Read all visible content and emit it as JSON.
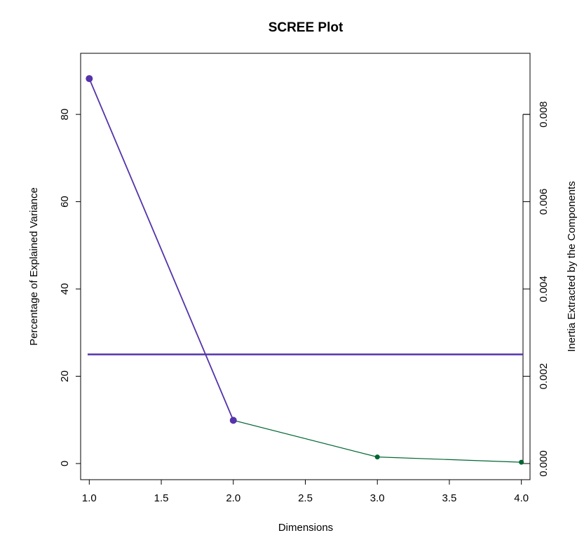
{
  "chart_data": {
    "type": "line",
    "title": "SCREE Plot",
    "xlabel": "Dimensions",
    "ylabel": "Percentage of Explained Variance",
    "y2label": "Inertia Extracted by the Components",
    "xlim": [
      0.94,
      4.06
    ],
    "ylim": [
      -3.7,
      94.0
    ],
    "x_ticks": [
      1.0,
      1.5,
      2.0,
      2.5,
      3.0,
      3.5,
      4.0
    ],
    "x_tick_labels": [
      "1.0",
      "1.5",
      "2.0",
      "2.5",
      "3.0",
      "3.5",
      "4.0"
    ],
    "y_ticks": [
      0,
      20,
      40,
      60,
      80
    ],
    "y_tick_labels": [
      "0",
      "20",
      "40",
      "60",
      "80"
    ],
    "y2_ticks": [
      0,
      0.002,
      0.004,
      0.006,
      0.008
    ],
    "y2_tick_labels": [
      "0.000",
      "0.002",
      "0.004",
      "0.006",
      "0.008"
    ],
    "y2_range_top": 0.008,
    "y2_zero_value": 0,
    "y2_per_percent": 0.0001,
    "grid": false,
    "legend": "none",
    "series": [
      {
        "x": [
          1,
          2,
          3,
          4
        ],
        "values": [
          88.2,
          9.9,
          1.5,
          0.3
        ],
        "color": "#006633"
      }
    ],
    "highlight_indices": [
      0,
      1
    ],
    "highlight_color": "#5533aa",
    "reference_line": {
      "y": 25,
      "color": "#5533aa"
    }
  }
}
